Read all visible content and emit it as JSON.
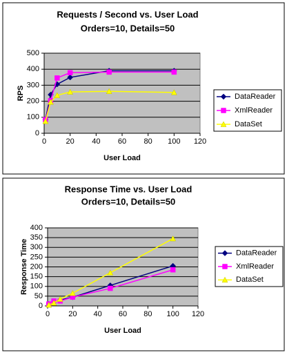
{
  "chart_data": [
    {
      "type": "line",
      "title": "Requests / Second  vs.  User Load",
      "subtitle": "Orders=10, Details=50",
      "x_label": "User Load",
      "y_label": "RPS",
      "x": [
        1,
        5,
        10,
        20,
        50,
        100
      ],
      "series": [
        {
          "name": "DataReader",
          "color": "#000080",
          "marker": "diamond",
          "values": [
            86,
            241,
            306,
            349,
            390,
            390
          ]
        },
        {
          "name": "XmlReader",
          "color": "#ff00ff",
          "marker": "square",
          "values": [
            85,
            203,
            345,
            378,
            382,
            382
          ]
        },
        {
          "name": "DataSet",
          "color": "#ffff00",
          "marker": "triangle",
          "values": [
            75,
            195,
            237,
            258,
            262,
            255
          ]
        }
      ],
      "xlim": [
        0,
        120
      ],
      "xticks": [
        0,
        20,
        40,
        60,
        80,
        100,
        120
      ],
      "ylim": [
        0,
        500
      ],
      "yticks": [
        0,
        100,
        200,
        300,
        400,
        500
      ],
      "grid": true,
      "legend": "right"
    },
    {
      "type": "line",
      "title": "Response Time  vs.  User Load",
      "subtitle": "Orders=10, Details=50",
      "x_label": "User Load",
      "y_label": "Response Time",
      "x": [
        1,
        5,
        10,
        20,
        50,
        100
      ],
      "series": [
        {
          "name": "DataReader",
          "color": "#000080",
          "marker": "diamond",
          "values": [
            10,
            20,
            30,
            45,
            105,
            205
          ]
        },
        {
          "name": "XmlReader",
          "color": "#ff00ff",
          "marker": "square",
          "values": [
            10,
            25,
            25,
            45,
            90,
            185
          ]
        },
        {
          "name": "DataSet",
          "color": "#ffff00",
          "marker": "triangle",
          "values": [
            5,
            15,
            35,
            65,
            170,
            345
          ]
        }
      ],
      "xlim": [
        0,
        120
      ],
      "xticks": [
        0,
        20,
        40,
        60,
        80,
        100,
        120
      ],
      "ylim": [
        0,
        400
      ],
      "yticks": [
        0,
        50,
        100,
        150,
        200,
        250,
        300,
        350,
        400
      ],
      "grid": true,
      "legend": "right"
    }
  ]
}
